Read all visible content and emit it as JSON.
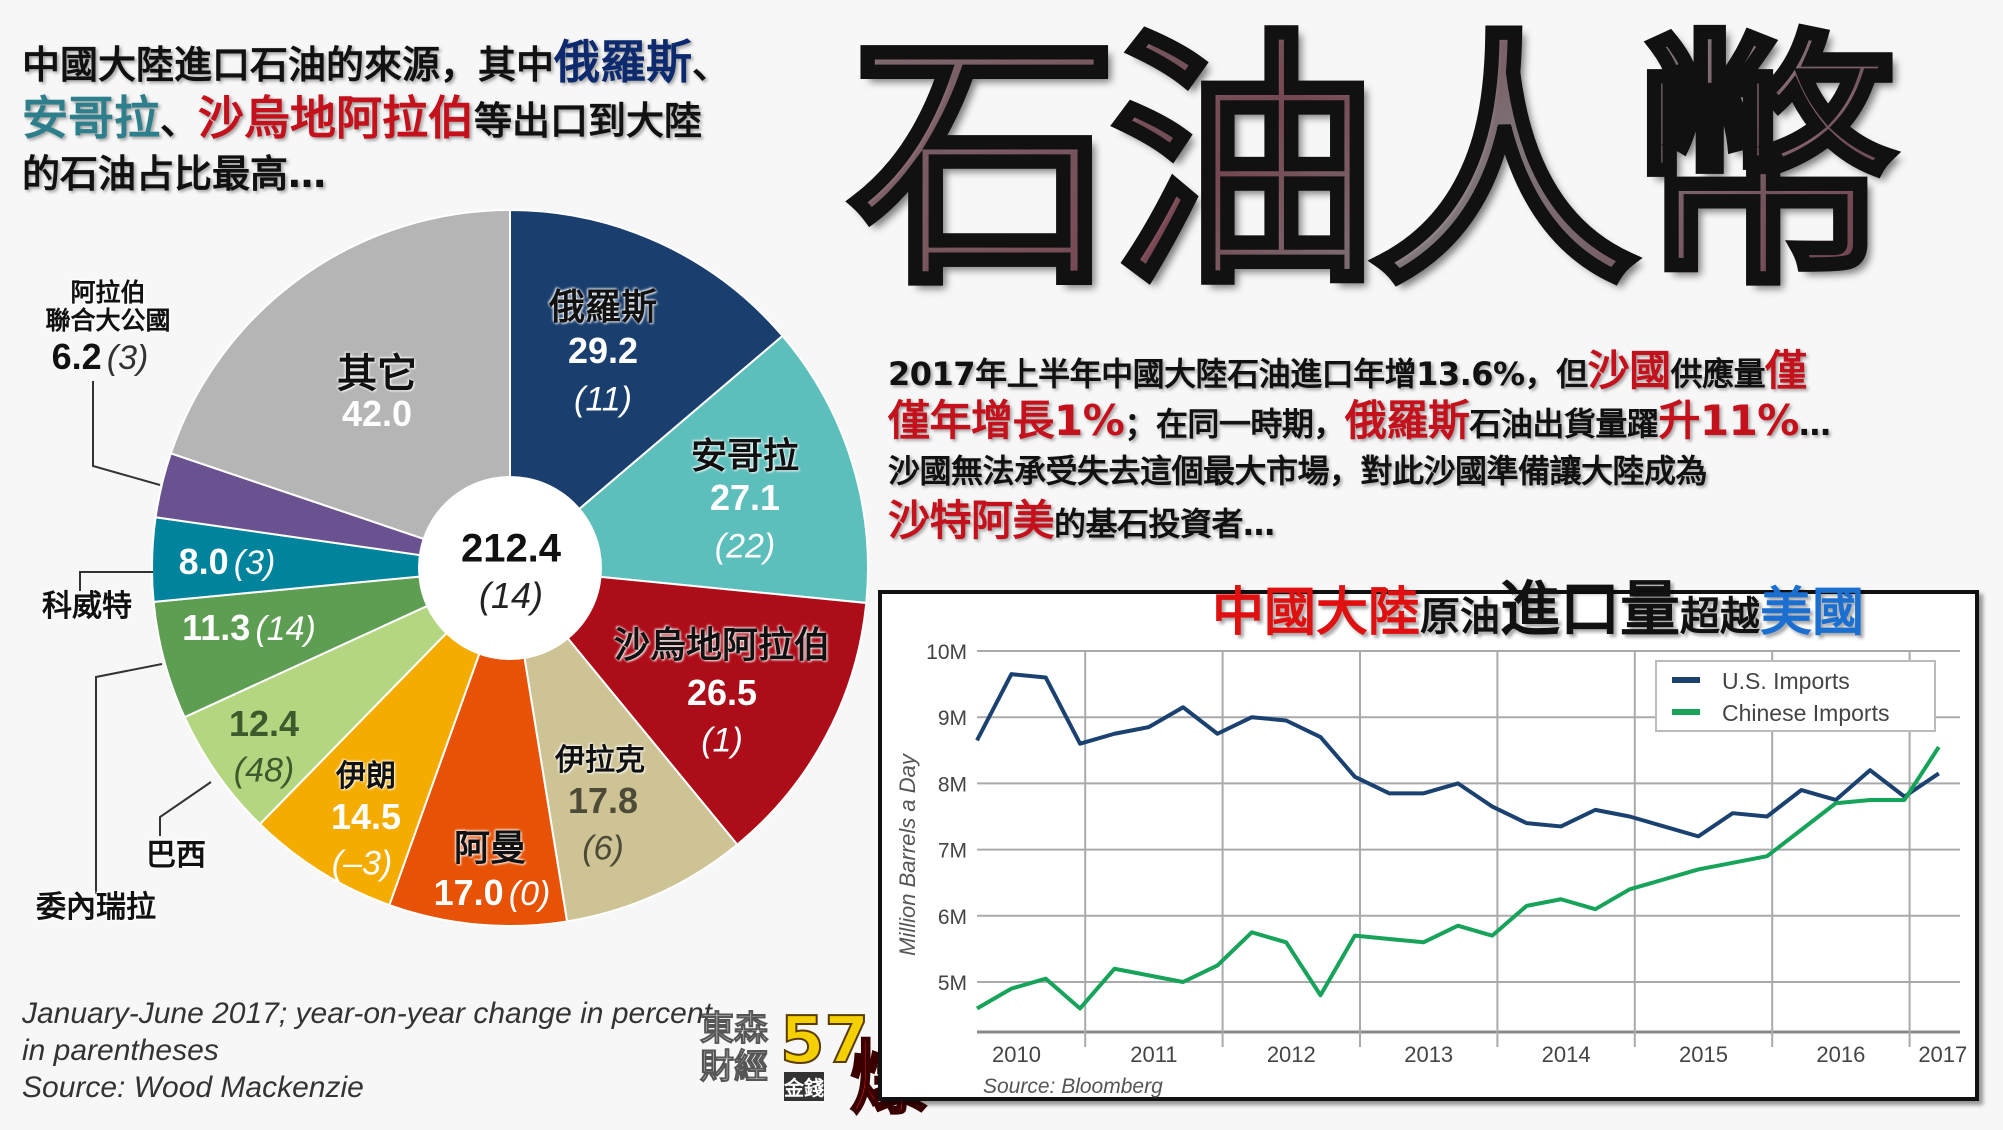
{
  "headline": {
    "line1_a": "中國大陸進口石油的來源，其中",
    "line1_b": "俄羅斯",
    "line1_c": "、",
    "line2_a": "安哥拉",
    "line2_b": "、",
    "line2_c": "沙烏地阿拉伯",
    "line2_d": "等出口到大陸",
    "line3": "的石油占比最高…"
  },
  "big_title": "石油人幣",
  "paragraph": {
    "l1_a": "2017年上半年中國大陸石油進口年增13.6%，但",
    "l1_b": "沙國",
    "l1_c": "供應量",
    "l1_d": "僅",
    "l2_a": "僅年增長1%",
    "l2_b": "；在同一時期，",
    "l2_c": "俄羅斯",
    "l2_d": "石油出貨量躍",
    "l2_e": "升11%",
    "l2_f": "…",
    "l3": "沙國無法承受失去這個最大市場，對此沙國準備讓大陸成為",
    "l4_a": "沙特阿美",
    "l4_b": "的基石投資者…"
  },
  "footnote": {
    "line1": "January-June 2017; year-on-year change in percent",
    "line2": "in parentheses",
    "line3": "Source: Wood Mackenzie"
  },
  "logo": {
    "text1": "東森",
    "text2": "財經",
    "number": "57",
    "text3": "金錢",
    "text4": "爆"
  },
  "colors": {
    "russia": "#1a3f6f",
    "angola": "#5dbfbc",
    "saudi": "#ad0d19",
    "iraq": "#cdc394",
    "oman": "#e85206",
    "iran": "#f4ac00",
    "brazil": "#b5d681",
    "venezuela": "#5e9e52",
    "kuwait": "#00849e",
    "uae": "#6a5190",
    "other": "#b5b5b5",
    "us_line": "#1a4170",
    "cn_line": "#17a35a"
  },
  "chart_data": [
    {
      "type": "pie",
      "variant": "donut",
      "center_value": "212.4",
      "center_change": "(14)",
      "slices": [
        {
          "key": "russia",
          "label": "俄羅斯",
          "value": 29.2,
          "value_text": "29.2",
          "change": "(11)"
        },
        {
          "key": "angola",
          "label": "安哥拉",
          "value": 27.1,
          "value_text": "27.1",
          "change": "(22)"
        },
        {
          "key": "saudi",
          "label": "沙烏地阿拉伯",
          "value": 26.5,
          "value_text": "26.5",
          "change": "(1)"
        },
        {
          "key": "iraq",
          "label": "伊拉克",
          "value": 17.8,
          "value_text": "17.8",
          "change": "(6)"
        },
        {
          "key": "oman",
          "label": "阿曼",
          "value": 17.0,
          "value_text": "17.0",
          "change": "(0)"
        },
        {
          "key": "iran",
          "label": "伊朗",
          "value": 14.5,
          "value_text": "14.5",
          "change": "(–3)"
        },
        {
          "key": "brazil",
          "label": "巴西",
          "value": 12.4,
          "value_text": "12.4",
          "change": "(48)"
        },
        {
          "key": "venezuela",
          "label": "委內瑞拉",
          "value": 11.3,
          "value_text": "11.3",
          "change": "(14)"
        },
        {
          "key": "kuwait",
          "label": "科威特",
          "value": 8.0,
          "value_text": "8.0",
          "change": "(3)"
        },
        {
          "key": "uae",
          "label": "阿拉伯聯合大公國",
          "label_l1": "阿拉伯",
          "label_l2": "聯合大公國",
          "value": 6.2,
          "value_text": "6.2",
          "change": "(3)"
        },
        {
          "key": "other",
          "label": "其它",
          "value": 42.0,
          "value_text": "42.0",
          "change": ""
        }
      ]
    },
    {
      "type": "line",
      "title_parts": [
        "中國大陸",
        "原油",
        "進口量",
        "超越",
        "美國"
      ],
      "ylabel": "Million Barrels a Day",
      "source": "Source: Bloomberg",
      "yticks": [
        "10M",
        "9M",
        "8M",
        "7M",
        "6M",
        "5M"
      ],
      "ytick_values": [
        10,
        9,
        8,
        7,
        6,
        5
      ],
      "ylim": [
        4.25,
        10
      ],
      "xticks": [
        "2010",
        "2011",
        "2012",
        "2013",
        "2014",
        "2015",
        "2016",
        "2017"
      ],
      "x": [
        "2010Q1",
        "2010Q2",
        "2010Q3",
        "2010Q4",
        "2011Q1",
        "2011Q2",
        "2011Q3",
        "2011Q4",
        "2012Q1",
        "2012Q2",
        "2012Q3",
        "2012Q4",
        "2013Q1",
        "2013Q2",
        "2013Q3",
        "2013Q4",
        "2014Q1",
        "2014Q2",
        "2014Q3",
        "2014Q4",
        "2015Q1",
        "2015Q2",
        "2015Q3",
        "2015Q4",
        "2016Q1",
        "2016Q2",
        "2016Q3",
        "2016Q4",
        "2017Q1"
      ],
      "grid": true,
      "legend_position": "top-right",
      "series": [
        {
          "name": "U.S. Imports",
          "color_key": "us_line",
          "values": [
            8.65,
            9.65,
            9.6,
            8.6,
            8.75,
            8.85,
            9.15,
            8.75,
            9.0,
            8.95,
            8.7,
            8.1,
            7.85,
            7.85,
            8.0,
            7.65,
            7.4,
            7.35,
            7.6,
            7.5,
            7.35,
            7.2,
            7.55,
            7.5,
            7.9,
            7.75,
            8.2,
            7.8,
            8.15
          ]
        },
        {
          "name": "Chinese Imports",
          "color_key": "cn_line",
          "values": [
            4.6,
            4.9,
            5.05,
            4.6,
            5.2,
            5.1,
            5.0,
            5.25,
            5.75,
            5.6,
            4.8,
            5.7,
            5.65,
            5.6,
            5.85,
            5.7,
            6.15,
            6.25,
            6.1,
            6.4,
            6.55,
            6.7,
            6.8,
            6.9,
            7.3,
            7.7,
            7.75,
            7.75,
            8.55
          ]
        }
      ]
    }
  ]
}
